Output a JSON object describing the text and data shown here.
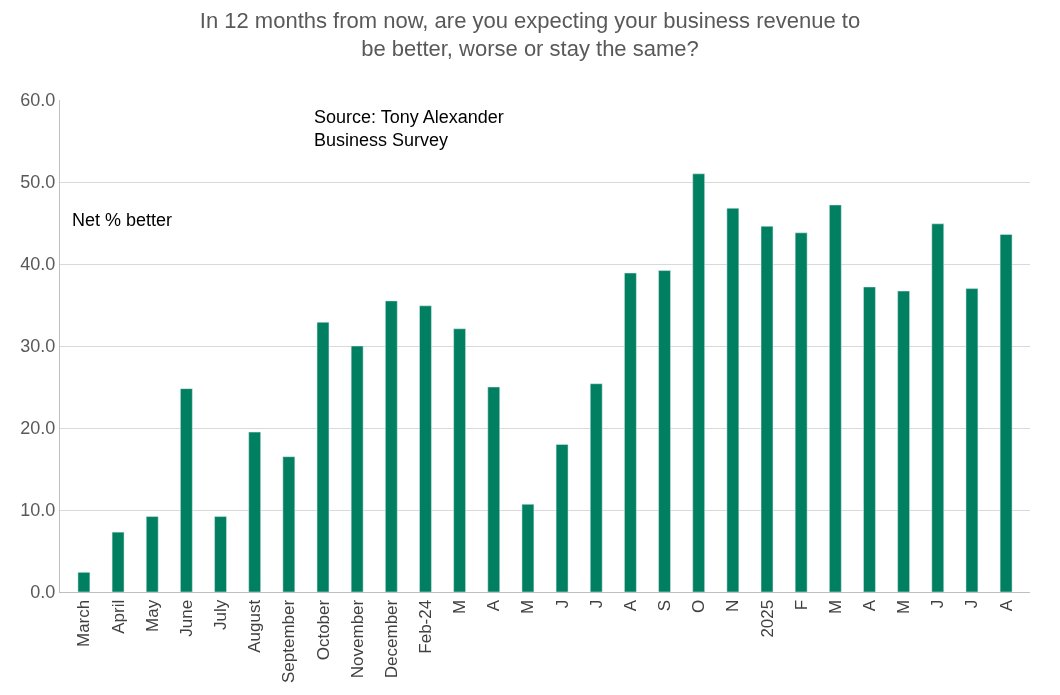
{
  "chart_data": {
    "type": "bar",
    "title": "In 12 months from now, are you expecting your business revenue to\nbe better, worse or stay the same?",
    "categories": [
      "March",
      "April",
      "May",
      "June",
      "July",
      "August",
      "September",
      "October",
      "November",
      "December",
      "Feb-24",
      "M",
      "A",
      "M",
      "J",
      "J",
      "A",
      "S",
      "O",
      "N",
      "2025",
      "F",
      "M",
      "A",
      "M",
      "J",
      "J",
      "A"
    ],
    "values": [
      2.4,
      7.3,
      9.2,
      24.8,
      9.2,
      19.5,
      16.5,
      32.9,
      30.0,
      35.5,
      34.9,
      32.1,
      25.0,
      10.7,
      18.0,
      25.4,
      38.9,
      39.2,
      51.0,
      46.8,
      44.6,
      43.8,
      47.2,
      37.2,
      36.7,
      44.9,
      37.0,
      43.6
    ],
    "color": "#008060",
    "ylim": [
      0,
      60
    ],
    "yticks": [
      {
        "value": 0,
        "label": "0.0"
      },
      {
        "value": 10,
        "label": "10.0"
      },
      {
        "value": 20,
        "label": "20.0"
      },
      {
        "value": 30,
        "label": "30.0"
      },
      {
        "value": 40,
        "label": "40.0"
      },
      {
        "value": 50,
        "label": "50.0"
      },
      {
        "value": 60,
        "label": "60.0"
      }
    ],
    "grid": "y",
    "annotations": [
      "Net % better",
      "Source: Tony Alexander\nBusiness Survey"
    ]
  }
}
